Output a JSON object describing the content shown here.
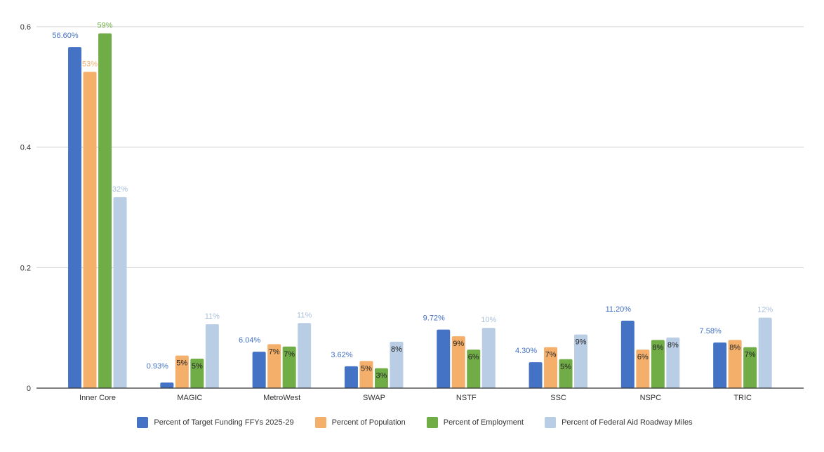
{
  "chart_data": {
    "type": "bar",
    "title": "",
    "xlabel": "",
    "ylabel": "",
    "ylim": [
      0,
      0.6
    ],
    "yticks": [
      "0",
      "0.2",
      "0.4",
      "0.6"
    ],
    "grid": true,
    "legend_position": "bottom",
    "categories": [
      "Inner Core",
      "MAGIC",
      "MetroWest",
      "SWAP",
      "NSTF",
      "SSC",
      "NSPC",
      "TRIC"
    ],
    "series": [
      {
        "name": "Percent of Target Funding FFYs 2025-29",
        "color": "#4472c4",
        "values": [
          0.566,
          0.0093,
          0.0604,
          0.0362,
          0.0972,
          0.043,
          0.112,
          0.0758
        ],
        "labels": [
          "56.60%",
          "0.93%",
          "6.04%",
          "3.62%",
          "9.72%",
          "4.30%",
          "11.20%",
          "7.58%"
        ]
      },
      {
        "name": "Percent of Population",
        "color": "#f4b06a",
        "values": [
          0.525,
          0.054,
          0.073,
          0.045,
          0.086,
          0.068,
          0.064,
          0.08
        ],
        "labels": [
          "53%",
          "5%",
          "7%",
          "5%",
          "9%",
          "7%",
          "6%",
          "8%"
        ]
      },
      {
        "name": "Percent of Employment",
        "color": "#70ad47",
        "values": [
          0.589,
          0.049,
          0.069,
          0.033,
          0.064,
          0.048,
          0.08,
          0.068
        ],
        "labels": [
          "59%",
          "5%",
          "7%",
          "3%",
          "6%",
          "5%",
          "8%",
          "7%"
        ]
      },
      {
        "name": "Percent of Federal Aid Roadway Miles",
        "color": "#b9cde5",
        "values": [
          0.317,
          0.106,
          0.108,
          0.077,
          0.1,
          0.089,
          0.084,
          0.117
        ],
        "labels": [
          "32%",
          "11%",
          "11%",
          "8%",
          "10%",
          "9%",
          "8%",
          "12%"
        ]
      }
    ]
  }
}
